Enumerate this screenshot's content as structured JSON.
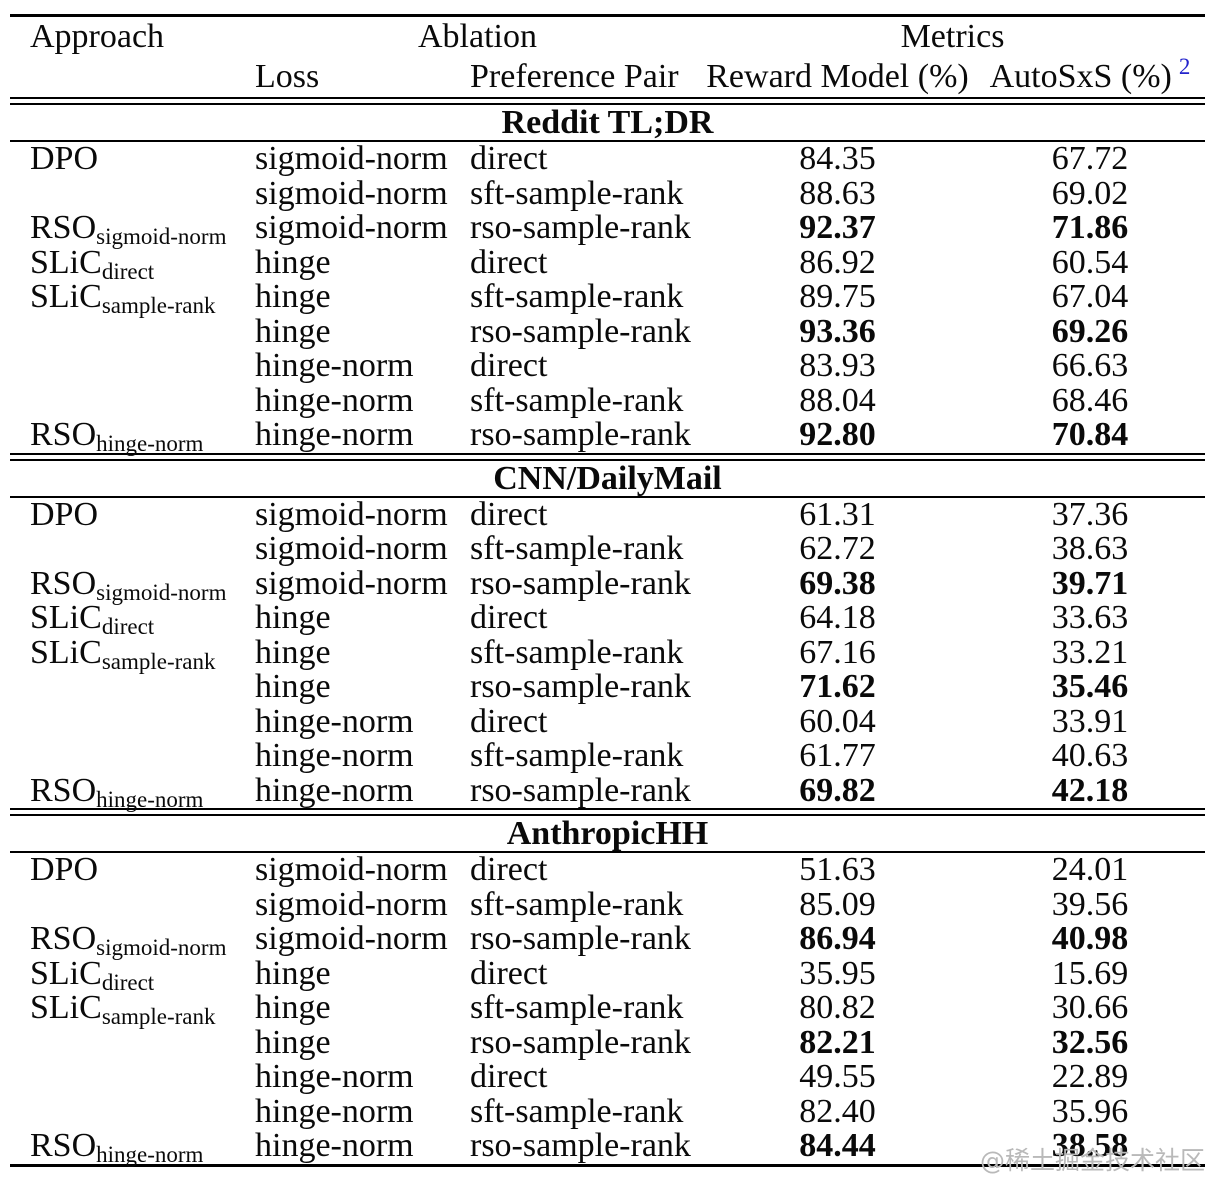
{
  "page": {
    "watermark": "@稀土掘金技术社区",
    "watermark_color": "#b9b9b9"
  },
  "table": {
    "header": {
      "approach": "Approach",
      "ablation": "Ablation",
      "metrics": "Metrics",
      "loss": "Loss",
      "preference_pair": "Preference Pair",
      "reward_model": "Reward Model (%)",
      "autosxs": "AutoSxS (%)",
      "autosxs_footnote": "2",
      "footnote_color": "#2323cc"
    },
    "sections": [
      {
        "title": "Reddit TL;DR",
        "rows": [
          {
            "approach": "DPO",
            "approach_sub": "",
            "loss": "sigmoid-norm",
            "pair": "direct",
            "reward": "84.35",
            "autosxs": "67.72",
            "bold": false
          },
          {
            "approach": "",
            "approach_sub": "",
            "loss": "sigmoid-norm",
            "pair": "sft-sample-rank",
            "reward": "88.63",
            "autosxs": "69.02",
            "bold": false
          },
          {
            "approach": "RSO",
            "approach_sub": "sigmoid-norm",
            "loss": "sigmoid-norm",
            "pair": "rso-sample-rank",
            "reward": "92.37",
            "autosxs": "71.86",
            "bold": true
          },
          {
            "approach": "SLiC",
            "approach_sub": "direct",
            "loss": "hinge",
            "pair": "direct",
            "reward": "86.92",
            "autosxs": "60.54",
            "bold": false
          },
          {
            "approach": "SLiC",
            "approach_sub": "sample-rank",
            "loss": "hinge",
            "pair": "sft-sample-rank",
            "reward": "89.75",
            "autosxs": "67.04",
            "bold": false
          },
          {
            "approach": "",
            "approach_sub": "",
            "loss": "hinge",
            "pair": "rso-sample-rank",
            "reward": "93.36",
            "autosxs": "69.26",
            "bold": true
          },
          {
            "approach": "",
            "approach_sub": "",
            "loss": "hinge-norm",
            "pair": "direct",
            "reward": "83.93",
            "autosxs": "66.63",
            "bold": false
          },
          {
            "approach": "",
            "approach_sub": "",
            "loss": "hinge-norm",
            "pair": "sft-sample-rank",
            "reward": "88.04",
            "autosxs": "68.46",
            "bold": false
          },
          {
            "approach": "RSO",
            "approach_sub": "hinge-norm",
            "loss": "hinge-norm",
            "pair": "rso-sample-rank",
            "reward": "92.80",
            "autosxs": "70.84",
            "bold": true
          }
        ]
      },
      {
        "title": "CNN/DailyMail",
        "rows": [
          {
            "approach": "DPO",
            "approach_sub": "",
            "loss": "sigmoid-norm",
            "pair": "direct",
            "reward": "61.31",
            "autosxs": "37.36",
            "bold": false
          },
          {
            "approach": "",
            "approach_sub": "",
            "loss": "sigmoid-norm",
            "pair": "sft-sample-rank",
            "reward": "62.72",
            "autosxs": "38.63",
            "bold": false
          },
          {
            "approach": "RSO",
            "approach_sub": "sigmoid-norm",
            "loss": "sigmoid-norm",
            "pair": "rso-sample-rank",
            "reward": "69.38",
            "autosxs": "39.71",
            "bold": true
          },
          {
            "approach": "SLiC",
            "approach_sub": "direct",
            "loss": "hinge",
            "pair": "direct",
            "reward": "64.18",
            "autosxs": "33.63",
            "bold": false
          },
          {
            "approach": "SLiC",
            "approach_sub": "sample-rank",
            "loss": "hinge",
            "pair": "sft-sample-rank",
            "reward": "67.16",
            "autosxs": "33.21",
            "bold": false
          },
          {
            "approach": "",
            "approach_sub": "",
            "loss": "hinge",
            "pair": "rso-sample-rank",
            "reward": "71.62",
            "autosxs": "35.46",
            "bold": true
          },
          {
            "approach": "",
            "approach_sub": "",
            "loss": "hinge-norm",
            "pair": "direct",
            "reward": "60.04",
            "autosxs": "33.91",
            "bold": false
          },
          {
            "approach": "",
            "approach_sub": "",
            "loss": "hinge-norm",
            "pair": "sft-sample-rank",
            "reward": "61.77",
            "autosxs": "40.63",
            "bold": false
          },
          {
            "approach": "RSO",
            "approach_sub": "hinge-norm",
            "loss": "hinge-norm",
            "pair": "rso-sample-rank",
            "reward": "69.82",
            "autosxs": "42.18",
            "bold": true
          }
        ]
      },
      {
        "title": "AnthropicHH",
        "rows": [
          {
            "approach": "DPO",
            "approach_sub": "",
            "loss": "sigmoid-norm",
            "pair": "direct",
            "reward": "51.63",
            "autosxs": "24.01",
            "bold": false
          },
          {
            "approach": "",
            "approach_sub": "",
            "loss": "sigmoid-norm",
            "pair": "sft-sample-rank",
            "reward": "85.09",
            "autosxs": "39.56",
            "bold": false
          },
          {
            "approach": "RSO",
            "approach_sub": "sigmoid-norm",
            "loss": "sigmoid-norm",
            "pair": "rso-sample-rank",
            "reward": "86.94",
            "autosxs": "40.98",
            "bold": true
          },
          {
            "approach": "SLiC",
            "approach_sub": "direct",
            "loss": "hinge",
            "pair": "direct",
            "reward": "35.95",
            "autosxs": "15.69",
            "bold": false
          },
          {
            "approach": "SLiC",
            "approach_sub": "sample-rank",
            "loss": "hinge",
            "pair": "sft-sample-rank",
            "reward": "80.82",
            "autosxs": "30.66",
            "bold": false
          },
          {
            "approach": "",
            "approach_sub": "",
            "loss": "hinge",
            "pair": "rso-sample-rank",
            "reward": "82.21",
            "autosxs": "32.56",
            "bold": true
          },
          {
            "approach": "",
            "approach_sub": "",
            "loss": "hinge-norm",
            "pair": "direct",
            "reward": "49.55",
            "autosxs": "22.89",
            "bold": false
          },
          {
            "approach": "",
            "approach_sub": "",
            "loss": "hinge-norm",
            "pair": "sft-sample-rank",
            "reward": "82.40",
            "autosxs": "35.96",
            "bold": false
          },
          {
            "approach": "RSO",
            "approach_sub": "hinge-norm",
            "loss": "hinge-norm",
            "pair": "rso-sample-rank",
            "reward": "84.44",
            "autosxs": "38.58",
            "bold": true
          }
        ]
      }
    ]
  }
}
